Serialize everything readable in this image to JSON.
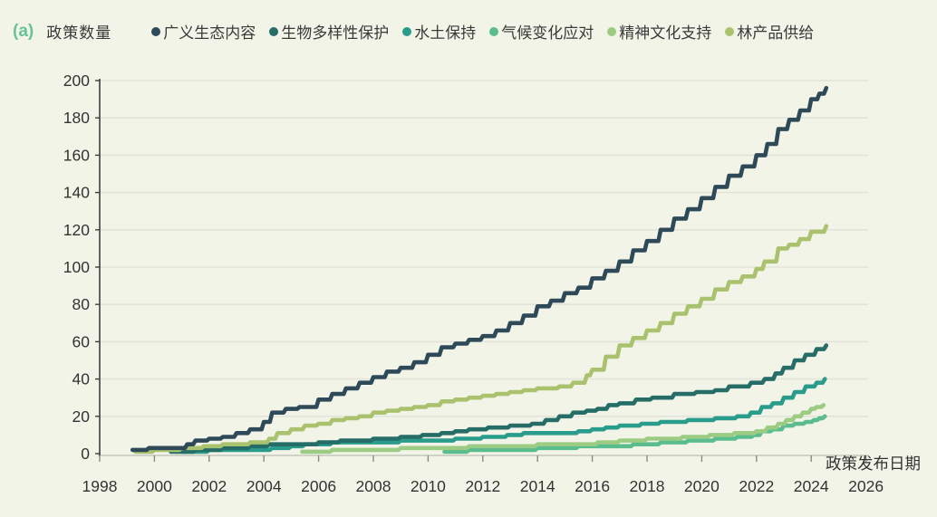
{
  "header": {
    "panel_label": "(a)",
    "panel_label_color": "#68c29a",
    "y_axis_title": "政策数量"
  },
  "legend": [
    {
      "label": "广义生态内容",
      "color": "#2e4a58"
    },
    {
      "label": "生物多样性保护",
      "color": "#266d68"
    },
    {
      "label": "水土保持",
      "color": "#2a9c8c"
    },
    {
      "label": "气候变化应对",
      "color": "#5abd8d"
    },
    {
      "label": "精神文化支持",
      "color": "#9ccc84"
    },
    {
      "label": "林产品供给",
      "color": "#aac26d"
    }
  ],
  "colors": {
    "background": "#f2f4e7",
    "gridline": "#e2e3da",
    "axis_dark": "#3e3e3e",
    "axis_light": "#c5c6be",
    "tick": "#8a8a85",
    "text": "#333333"
  },
  "chart_data": {
    "type": "line",
    "stepped": true,
    "title": "",
    "xlabel": "政策发布日期",
    "ylabel": "政策数量",
    "x_ticks": [
      1998,
      2000,
      2002,
      2004,
      2006,
      2008,
      2010,
      2012,
      2014,
      2016,
      2018,
      2020,
      2022,
      2024,
      2026
    ],
    "y_ticks": [
      0,
      20,
      40,
      60,
      80,
      100,
      120,
      140,
      160,
      180,
      200
    ],
    "xlim": [
      1998,
      2026
    ],
    "ylim": [
      0,
      200
    ],
    "grid": "horizontal",
    "legend_position": "top",
    "series": [
      {
        "name": "气候变化应对",
        "color": "#5abd8d",
        "points": [
          [
            2010.6,
            1
          ],
          [
            2011.5,
            2
          ],
          [
            2013,
            2
          ],
          [
            2014,
            3
          ],
          [
            2015.5,
            4
          ],
          [
            2016.5,
            4
          ],
          [
            2017.5,
            5
          ],
          [
            2018.5,
            6
          ],
          [
            2019.5,
            7
          ],
          [
            2020.5,
            8
          ],
          [
            2021.3,
            9
          ],
          [
            2021.9,
            10
          ],
          [
            2022.2,
            12
          ],
          [
            2022.6,
            13
          ],
          [
            2023,
            15
          ],
          [
            2023.4,
            16
          ],
          [
            2023.8,
            17
          ],
          [
            2024.1,
            18
          ],
          [
            2024.3,
            19
          ],
          [
            2024.5,
            20
          ]
        ]
      },
      {
        "name": "精神文化支持",
        "color": "#9ccc84",
        "points": [
          [
            2005.4,
            1
          ],
          [
            2006.5,
            2
          ],
          [
            2008,
            2
          ],
          [
            2009,
            3
          ],
          [
            2010.5,
            3
          ],
          [
            2011.5,
            4
          ],
          [
            2013,
            4
          ],
          [
            2014,
            5
          ],
          [
            2015.5,
            5
          ],
          [
            2016.2,
            6
          ],
          [
            2017,
            7
          ],
          [
            2018,
            8
          ],
          [
            2019.3,
            9
          ],
          [
            2020.3,
            10
          ],
          [
            2021.2,
            11
          ],
          [
            2022,
            12
          ],
          [
            2022.4,
            14
          ],
          [
            2022.8,
            16
          ],
          [
            2023.1,
            18
          ],
          [
            2023.4,
            20
          ],
          [
            2023.7,
            22
          ],
          [
            2024,
            24
          ],
          [
            2024.2,
            25
          ],
          [
            2024.45,
            26
          ]
        ]
      },
      {
        "name": "水土保持",
        "color": "#2a9c8c",
        "points": [
          [
            2001,
            1
          ],
          [
            2002,
            2
          ],
          [
            2003.5,
            2
          ],
          [
            2004.3,
            3
          ],
          [
            2005,
            4
          ],
          [
            2005.5,
            5
          ],
          [
            2006.5,
            6
          ],
          [
            2008,
            6
          ],
          [
            2009,
            7
          ],
          [
            2010,
            7
          ],
          [
            2011,
            8
          ],
          [
            2012,
            9
          ],
          [
            2012.9,
            10
          ],
          [
            2013.5,
            11
          ],
          [
            2014.5,
            11
          ],
          [
            2015.5,
            12
          ],
          [
            2016,
            13
          ],
          [
            2016.5,
            14
          ],
          [
            2017,
            15
          ],
          [
            2017.8,
            16
          ],
          [
            2018.5,
            17
          ],
          [
            2019.5,
            18
          ],
          [
            2020.5,
            19
          ],
          [
            2021.3,
            20
          ],
          [
            2021.8,
            22
          ],
          [
            2022.2,
            25
          ],
          [
            2022.6,
            27
          ],
          [
            2023,
            30
          ],
          [
            2023.4,
            33
          ],
          [
            2023.8,
            36
          ],
          [
            2024.2,
            38
          ],
          [
            2024.5,
            40
          ]
        ]
      },
      {
        "name": "生物多样性保护",
        "color": "#266d68",
        "points": [
          [
            2000.6,
            1
          ],
          [
            2001.5,
            2
          ],
          [
            2002.5,
            3
          ],
          [
            2003.5,
            4
          ],
          [
            2004.2,
            5
          ],
          [
            2005,
            5
          ],
          [
            2006,
            6
          ],
          [
            2006.8,
            7
          ],
          [
            2008,
            8
          ],
          [
            2009,
            9
          ],
          [
            2009.8,
            10
          ],
          [
            2010.5,
            11
          ],
          [
            2011,
            12
          ],
          [
            2011.5,
            13
          ],
          [
            2012.2,
            14
          ],
          [
            2013,
            15
          ],
          [
            2013.8,
            16
          ],
          [
            2014.3,
            18
          ],
          [
            2014.8,
            20
          ],
          [
            2015.3,
            22
          ],
          [
            2015.8,
            23
          ],
          [
            2016.2,
            24
          ],
          [
            2016.6,
            26
          ],
          [
            2017,
            27
          ],
          [
            2017.6,
            29
          ],
          [
            2018.2,
            30
          ],
          [
            2019,
            32
          ],
          [
            2019.8,
            33
          ],
          [
            2020.5,
            34
          ],
          [
            2021,
            36
          ],
          [
            2021.8,
            38
          ],
          [
            2022.3,
            40
          ],
          [
            2022.7,
            43
          ],
          [
            2023,
            46
          ],
          [
            2023.4,
            50
          ],
          [
            2023.8,
            53
          ],
          [
            2024.2,
            56
          ],
          [
            2024.55,
            58
          ]
        ]
      },
      {
        "name": "林产品供给",
        "color": "#aac26d",
        "points": [
          [
            1999.3,
            1
          ],
          [
            2000,
            2
          ],
          [
            2001,
            3
          ],
          [
            2001.8,
            4
          ],
          [
            2002.5,
            5
          ],
          [
            2003.5,
            6
          ],
          [
            2004.2,
            8
          ],
          [
            2004.5,
            11
          ],
          [
            2005,
            13
          ],
          [
            2005.5,
            15
          ],
          [
            2006,
            16
          ],
          [
            2006.5,
            18
          ],
          [
            2007,
            19
          ],
          [
            2007.5,
            20
          ],
          [
            2008,
            22
          ],
          [
            2008.5,
            23
          ],
          [
            2009,
            24
          ],
          [
            2009.5,
            25
          ],
          [
            2010,
            26
          ],
          [
            2010.5,
            28
          ],
          [
            2011,
            29
          ],
          [
            2011.5,
            30
          ],
          [
            2012,
            31
          ],
          [
            2012.5,
            32
          ],
          [
            2013,
            33
          ],
          [
            2013.5,
            34
          ],
          [
            2014,
            35
          ],
          [
            2014.8,
            36
          ],
          [
            2015.3,
            38
          ],
          [
            2015.8,
            42
          ],
          [
            2016,
            45
          ],
          [
            2016.5,
            52
          ],
          [
            2017,
            58
          ],
          [
            2017.5,
            62
          ],
          [
            2018,
            66
          ],
          [
            2018.5,
            70
          ],
          [
            2019,
            75
          ],
          [
            2019.5,
            79
          ],
          [
            2020,
            83
          ],
          [
            2020.5,
            88
          ],
          [
            2021,
            92
          ],
          [
            2021.5,
            95
          ],
          [
            2022,
            99
          ],
          [
            2022.3,
            103
          ],
          [
            2022.8,
            110
          ],
          [
            2023.2,
            112
          ],
          [
            2023.6,
            115
          ],
          [
            2024,
            119
          ],
          [
            2024.55,
            122
          ]
        ]
      },
      {
        "name": "广义生态内容",
        "color": "#2e4a58",
        "points": [
          [
            1999.2,
            2
          ],
          [
            1999.8,
            3
          ],
          [
            2000.5,
            3
          ],
          [
            2001.2,
            5
          ],
          [
            2001.5,
            7
          ],
          [
            2002,
            8
          ],
          [
            2002.5,
            9
          ],
          [
            2003,
            11
          ],
          [
            2003.5,
            13
          ],
          [
            2004,
            17
          ],
          [
            2004.3,
            22
          ],
          [
            2004.8,
            24
          ],
          [
            2005.3,
            25
          ],
          [
            2006,
            29
          ],
          [
            2006.5,
            32
          ],
          [
            2007,
            35
          ],
          [
            2007.5,
            38
          ],
          [
            2008,
            41
          ],
          [
            2008.5,
            44
          ],
          [
            2009,
            46
          ],
          [
            2009.5,
            49
          ],
          [
            2010,
            53
          ],
          [
            2010.5,
            57
          ],
          [
            2011,
            59
          ],
          [
            2011.5,
            61
          ],
          [
            2012,
            63
          ],
          [
            2012.5,
            66
          ],
          [
            2013,
            70
          ],
          [
            2013.5,
            74
          ],
          [
            2014,
            79
          ],
          [
            2014.5,
            82
          ],
          [
            2015,
            86
          ],
          [
            2015.5,
            89
          ],
          [
            2016,
            94
          ],
          [
            2016.5,
            98
          ],
          [
            2017,
            103
          ],
          [
            2017.5,
            109
          ],
          [
            2018,
            114
          ],
          [
            2018.5,
            120
          ],
          [
            2019,
            126
          ],
          [
            2019.5,
            131
          ],
          [
            2020,
            137
          ],
          [
            2020.5,
            143
          ],
          [
            2021,
            149
          ],
          [
            2021.5,
            154
          ],
          [
            2022,
            160
          ],
          [
            2022.4,
            166
          ],
          [
            2022.8,
            174
          ],
          [
            2023.2,
            179
          ],
          [
            2023.6,
            184
          ],
          [
            2024,
            190
          ],
          [
            2024.3,
            193
          ],
          [
            2024.55,
            196
          ]
        ]
      }
    ]
  }
}
